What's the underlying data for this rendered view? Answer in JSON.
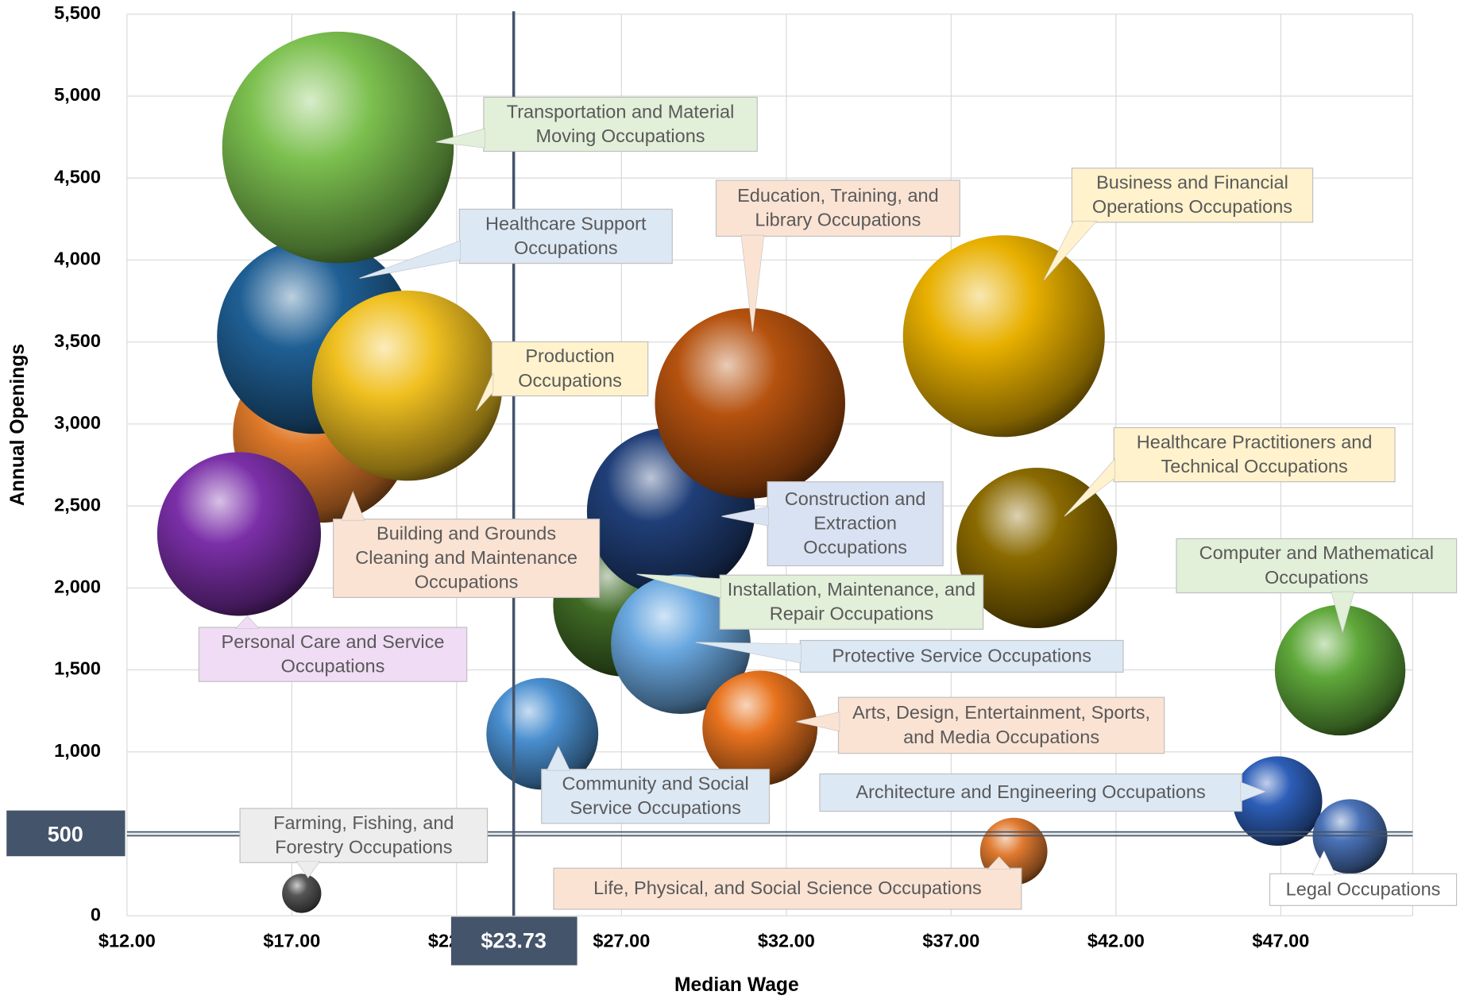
{
  "chart_data": {
    "type": "bubble",
    "x_label": "Median Wage",
    "y_label": "Annual Openings",
    "xlim": [
      12,
      51
    ],
    "ylim": [
      0,
      5500
    ],
    "xticks": [
      {
        "value": 12,
        "label": "$12.00"
      },
      {
        "value": 17,
        "label": "$17.00"
      },
      {
        "value": 22,
        "label": "$22.00"
      },
      {
        "value": 27,
        "label": "$27.00"
      },
      {
        "value": 32,
        "label": "$32.00"
      },
      {
        "value": 37,
        "label": "$37.00"
      },
      {
        "value": 42,
        "label": "$42.00"
      },
      {
        "value": 47,
        "label": "$47.00"
      }
    ],
    "yticks": [
      0,
      500,
      {
        "value": 1000,
        "label": "1,000"
      },
      {
        "value": 1500,
        "label": "1,500"
      },
      {
        "value": 2000,
        "label": "2,000"
      },
      {
        "value": 2500,
        "label": "2,500"
      },
      {
        "value": 3000,
        "label": "3,000"
      },
      {
        "value": 3500,
        "label": "3,500"
      },
      {
        "value": 4000,
        "label": "4,000"
      },
      {
        "value": 4500,
        "label": "4,500"
      },
      {
        "value": 5000,
        "label": "5,000"
      },
      {
        "value": 5500,
        "label": "5,500"
      }
    ],
    "grid": true,
    "reference_lines": {
      "x": 23.73,
      "x_label": "$23.73",
      "y": 500,
      "y_label": "500"
    },
    "series": [
      {
        "name": "Building and Grounds Cleaning and Maintenance Occupations",
        "color": "#e07a2a",
        "x": 17.9,
        "y": 2938,
        "size": 90
      },
      {
        "name": "Healthcare Support Occupations",
        "color": "#1f5f94",
        "x": 17.7,
        "y": 3536,
        "size": 110
      },
      {
        "name": "Transportation and Material Moving Occupations",
        "color": "#7cc04f",
        "x": 18.4,
        "y": 4687,
        "size": 154
      },
      {
        "name": "Production Occupations",
        "color": "#f0c020",
        "x": 20.5,
        "y": 3234,
        "size": 104
      },
      {
        "name": "Personal Care and Service Occupations",
        "color": "#7b2fa8",
        "x": 15.4,
        "y": 2329,
        "size": 77
      },
      {
        "name": "Installation, Maintenance, and Repair Occupations",
        "color": "#3f6a25",
        "x": 27.1,
        "y": 1896,
        "size": 59
      },
      {
        "name": "Construction and Extraction Occupations",
        "color": "#203f78",
        "x": 28.5,
        "y": 2466,
        "size": 81
      },
      {
        "name": "Education, Training, and Library Occupations",
        "color": "#b5520f",
        "x": 30.9,
        "y": 3126,
        "size": 104
      },
      {
        "name": "Protective Service Occupations",
        "color": "#6aa8e0",
        "x": 28.8,
        "y": 1657,
        "size": 56
      },
      {
        "name": "Community and Social Service Occupations",
        "color": "#4a8fd0",
        "x": 24.6,
        "y": 1110,
        "size": 36
      },
      {
        "name": "Arts, Design, Entertainment, Sports, and Media Occupations",
        "color": "#e8731e",
        "x": 31.2,
        "y": 1145,
        "size": 38
      },
      {
        "name": "Business and Financial Operations Occupations",
        "color": "#e8b000",
        "x": 38.6,
        "y": 3536,
        "size": 117
      },
      {
        "name": "Healthcare Practitioners and Technical Occupations",
        "color": "#8a6a00",
        "x": 39.6,
        "y": 2244,
        "size": 74
      },
      {
        "name": "Computer and Mathematical Occupations",
        "color": "#5fa83a",
        "x": 48.8,
        "y": 1498,
        "size": 49
      },
      {
        "name": "Architecture and Engineering Occupations",
        "color": "#2d5eb8",
        "x": 46.9,
        "y": 700,
        "size": 23
      },
      {
        "name": "Legal Occupations",
        "color": "#4a72b8",
        "x": 49.1,
        "y": 484,
        "size": 16
      },
      {
        "name": "Life, Physical, and Social Science Occupations",
        "color": "#e07a30",
        "x": 38.9,
        "y": 393,
        "size": 13
      },
      {
        "name": "Farming, Fishing, and Forestry Occupations",
        "color": "#555555",
        "x": 17.3,
        "y": 137,
        "size": 4.4
      }
    ]
  }
}
